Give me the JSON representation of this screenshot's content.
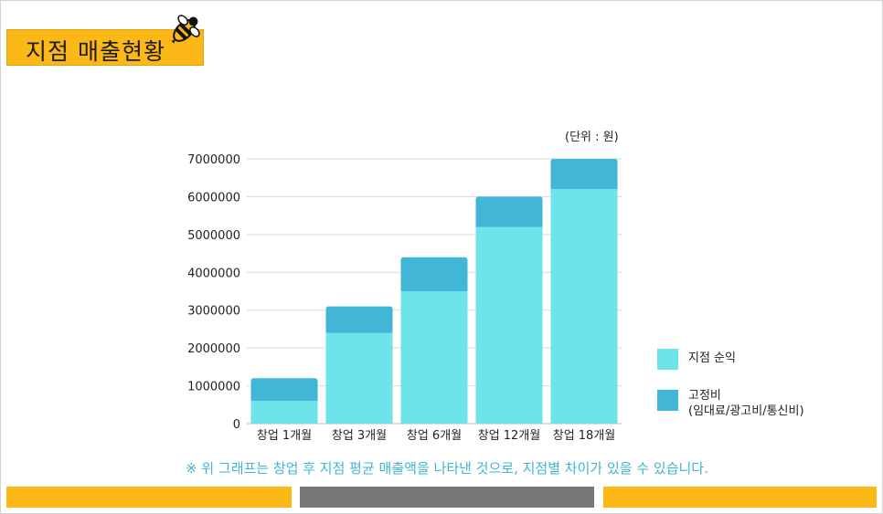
{
  "header": {
    "title": "지점 매출현황"
  },
  "icons": {
    "logo": "bee-icon"
  },
  "unit_label": "(단위 : 원)",
  "colors": {
    "accent": "#fbb817",
    "gray": "#777777",
    "net_profit": "#6ce4ea",
    "fixed_cost": "#42b6d7",
    "note": "#3fb5d3"
  },
  "chart_data": {
    "type": "bar",
    "stacked": true,
    "categories": [
      "창업 1개월",
      "창업 3개월",
      "창업 6개월",
      "창업 12개월",
      "창업 18개월"
    ],
    "series": [
      {
        "name": "지점 순익",
        "values": [
          600000,
          2400000,
          3500000,
          5200000,
          6200000
        ]
      },
      {
        "name": "고정비\n(임대료/광고비/통신비)",
        "values": [
          600000,
          700000,
          900000,
          800000,
          800000
        ]
      }
    ],
    "yticks": [
      0,
      1000000,
      2000000,
      3000000,
      4000000,
      5000000,
      6000000,
      7000000
    ],
    "ylim": [
      0,
      7000000
    ],
    "grid": true,
    "legend": "right"
  },
  "legend": {
    "net_profit": "지점 순익",
    "fixed_cost_line1": "고정비",
    "fixed_cost_line2": "(임대료/광고비/통신비)"
  },
  "footnote": "※ 위 그래프는 창업 후 지점 평균 매출액을 나타낸 것으로, 지점별 차이가 있을 수 있습니다."
}
